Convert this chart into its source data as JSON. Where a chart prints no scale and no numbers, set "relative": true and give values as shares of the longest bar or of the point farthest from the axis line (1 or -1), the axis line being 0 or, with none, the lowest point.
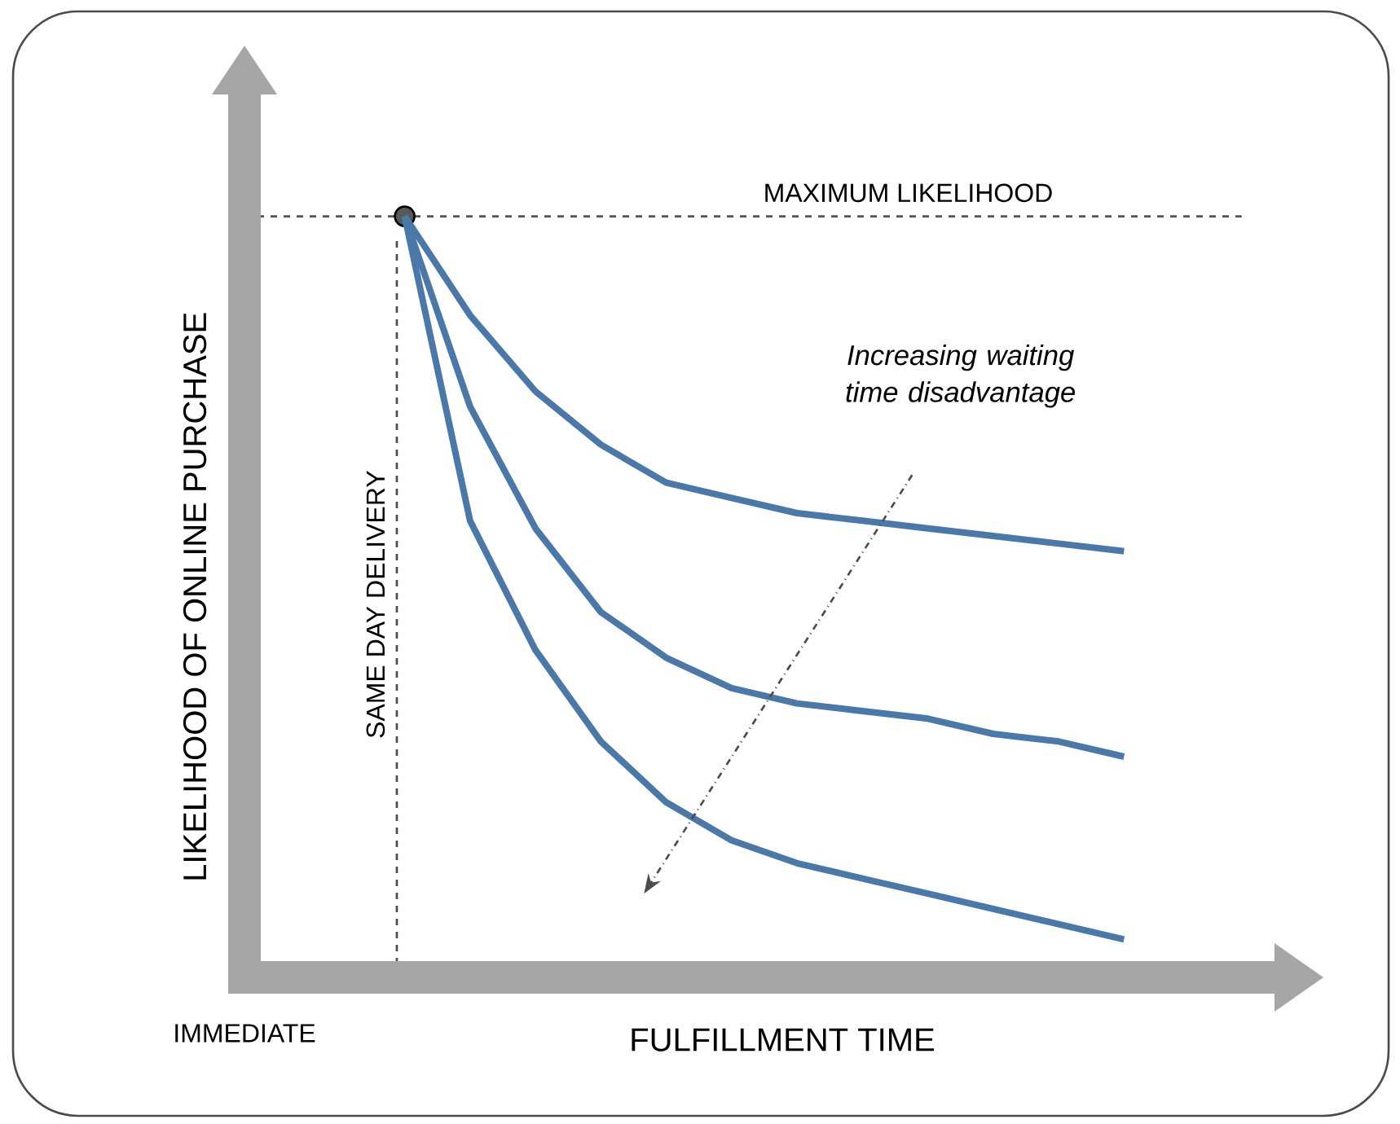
{
  "chart_data": {
    "type": "line",
    "relative": true,
    "xlabel": "FULFILLMENT TIME",
    "categories": [
      null,
      null,
      null,
      null,
      null,
      null,
      null,
      null,
      null,
      null,
      null,
      null
    ],
    "series": [
      {
        "color": "#4a78a8",
        "marker": "none",
        "values": [
          1.0,
          0.87,
          0.77,
          0.7,
          0.65,
          0.63,
          0.61,
          0.6,
          0.59,
          0.58,
          0.57,
          0.56
        ]
      },
      {
        "color": "#4a78a8",
        "marker": "none",
        "values": [
          1.0,
          0.75,
          0.59,
          0.48,
          0.42,
          0.38,
          0.36,
          0.35,
          0.34,
          0.32,
          0.31,
          0.29
        ]
      },
      {
        "color": "#4a78a8",
        "marker": "none",
        "values": [
          1.0,
          0.6,
          0.43,
          0.31,
          0.23,
          0.18,
          0.15,
          0.13,
          0.11,
          0.09,
          0.07,
          0.05
        ]
      }
    ],
    "ref_lines": [
      {
        "axis": "y",
        "value": 1.0,
        "label": "MAXIMUM LIKELIHOOD",
        "color": "#555555",
        "line_style": "dashed"
      }
    ],
    "annotations": [
      "Increasing waiting time disadvantage",
      "IMMEDIATE",
      "SAME DAY DELIVERY",
      "LIKELIHOOD OF ONLINE PURCHASE"
    ]
  }
}
